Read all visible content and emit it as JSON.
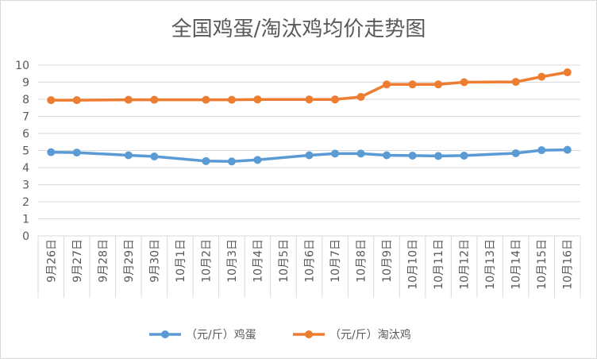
{
  "chart_data": {
    "type": "line",
    "title": "全国鸡蛋/淘汰鸡均价走势图",
    "categories": [
      "9月26日",
      "9月27日",
      "9月28日",
      "9月29日",
      "9月30日",
      "10月1日",
      "10月2日",
      "10月3日",
      "10月4日",
      "10月5日",
      "10月6日",
      "10月7日",
      "10月8日",
      "10月9日",
      "10月10日",
      "10月11日",
      "10月12日",
      "10月13日",
      "10月14日",
      "10月15日",
      "10月16日"
    ],
    "series": [
      {
        "name": "（元/斤）鸡蛋",
        "color": "#5b9bd5",
        "values": [
          4.9,
          4.88,
          null,
          4.72,
          4.65,
          null,
          4.38,
          4.36,
          4.45,
          null,
          4.72,
          4.82,
          4.82,
          4.72,
          4.7,
          4.68,
          4.7,
          null,
          4.84,
          5.02,
          5.04
        ]
      },
      {
        "name": "（元/斤）淘汰鸡",
        "color": "#ed7d31",
        "values": [
          7.95,
          7.95,
          null,
          7.97,
          7.97,
          null,
          7.97,
          7.97,
          7.99,
          null,
          7.99,
          7.99,
          8.14,
          8.87,
          8.87,
          8.87,
          9.0,
          null,
          9.02,
          9.32,
          9.58
        ]
      }
    ],
    "ylim": [
      0,
      10
    ],
    "yticks": [
      "0",
      "1",
      "2",
      "3",
      "4",
      "5",
      "6",
      "7",
      "8",
      "9",
      "10"
    ],
    "grid": true,
    "legend": "bottom"
  }
}
